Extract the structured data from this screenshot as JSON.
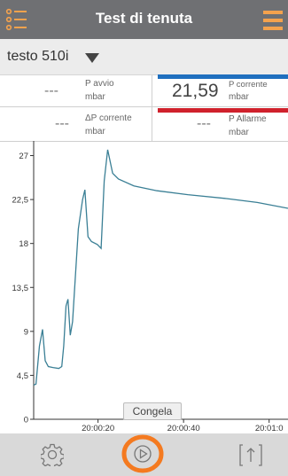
{
  "header": {
    "title": "Test di tenuta"
  },
  "device": {
    "name": "testo 510i"
  },
  "readings": {
    "p_start": {
      "value": "---",
      "label": "P avvio",
      "unit": "mbar"
    },
    "p_current": {
      "value": "21,59",
      "label": "P corrente",
      "unit": "mbar"
    },
    "dp_current": {
      "value": "---",
      "label": "ΔP corrente",
      "unit": "mbar"
    },
    "p_alarm": {
      "value": "---",
      "label": "P Allarme",
      "unit": "mbar"
    }
  },
  "colors": {
    "header_bg": "#6f7073",
    "accent_orange": "#f47a20",
    "blue": "#1f6fbf",
    "red": "#d0212c",
    "line": "#3a7f95"
  },
  "chart_data": {
    "type": "line",
    "x_tick_labels": [
      "20:00:20",
      "20:00:40",
      "20:01:0"
    ],
    "y_ticks": [
      0,
      4.5,
      9,
      13.5,
      18,
      22.5,
      27
    ],
    "ylim": [
      0,
      28.5
    ],
    "xlim": [
      0,
      66
    ],
    "series": [
      {
        "values": [
          [
            0,
            3.5
          ],
          [
            0.6,
            3.6
          ],
          [
            1.5,
            7.5
          ],
          [
            2.3,
            9.2
          ],
          [
            3,
            6.0
          ],
          [
            3.8,
            5.4
          ],
          [
            5,
            5.3
          ],
          [
            6.5,
            5.2
          ],
          [
            7.3,
            5.4
          ],
          [
            7.8,
            7.5
          ],
          [
            8.4,
            11.6
          ],
          [
            8.9,
            12.3
          ],
          [
            9.5,
            8.6
          ],
          [
            10.1,
            10
          ],
          [
            11.6,
            19.5
          ],
          [
            12.7,
            22.5
          ],
          [
            13.3,
            23.5
          ],
          [
            14.1,
            18.7
          ],
          [
            15,
            18.2
          ],
          [
            16.5,
            17.9
          ],
          [
            17.5,
            17.5
          ],
          [
            18.3,
            24.4
          ],
          [
            19.2,
            27.6
          ],
          [
            20.5,
            25.2
          ],
          [
            22,
            24.6
          ],
          [
            26,
            23.9
          ],
          [
            32,
            23.4
          ],
          [
            40,
            23.0
          ],
          [
            50,
            22.6
          ],
          [
            58,
            22.2
          ],
          [
            66,
            21.6
          ]
        ]
      }
    ],
    "freeze_button_label": "Congela"
  },
  "toolbar": {
    "settings_icon": "gear-icon",
    "play_icon": "play-icon",
    "export_icon": "export-icon"
  }
}
